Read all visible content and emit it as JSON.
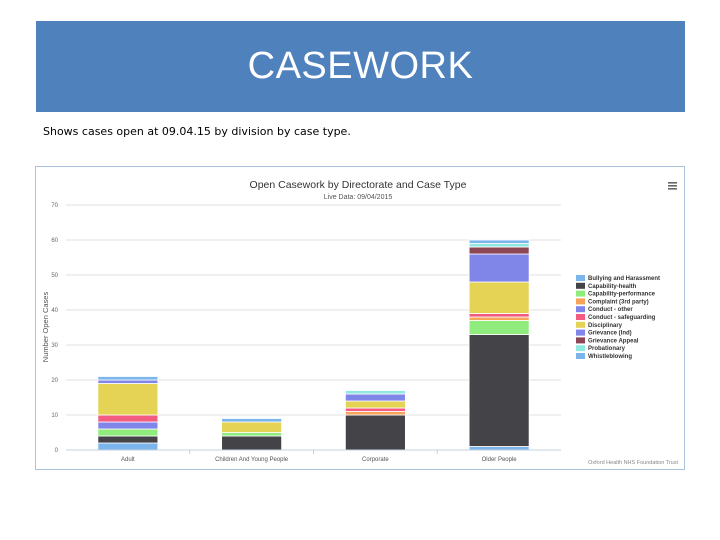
{
  "header": {
    "title": "CASEWORK"
  },
  "subtitle": "Shows cases open at 09.04.15 by division by case type.",
  "chart_data": {
    "type": "bar",
    "stacked": true,
    "title": "Open Casework by Directorate and Case Type",
    "subtitle": "Live Data: 09/04/2015",
    "xlabel": "",
    "ylabel": "Number Open Cases",
    "ylim": [
      0,
      70
    ],
    "yticks": [
      0,
      10,
      20,
      30,
      40,
      50,
      60,
      70
    ],
    "grid": true,
    "legend_position": "right",
    "menu_icon": "hamburger-menu-icon",
    "credit": "Oxford Health NHS Foundation Trust",
    "categories": [
      "Adult",
      "Children And Young People",
      "Corporate",
      "Older People"
    ],
    "series": [
      {
        "name": "Bullying and Harassment",
        "color": "#7cb5ec",
        "values": [
          2,
          0,
          0,
          1
        ]
      },
      {
        "name": "Capability-health",
        "color": "#434348",
        "values": [
          2,
          4,
          10,
          32
        ]
      },
      {
        "name": "Capability-performance",
        "color": "#90ed7d",
        "values": [
          2,
          1,
          0,
          4
        ]
      },
      {
        "name": "Complaint (3rd party)",
        "color": "#f7a35c",
        "values": [
          0,
          0,
          1,
          1
        ]
      },
      {
        "name": "Conduct - other",
        "color": "#8085e9",
        "values": [
          2,
          0,
          0,
          0
        ]
      },
      {
        "name": "Conduct - safeguarding",
        "color": "#f15c80",
        "values": [
          2,
          0,
          1,
          1
        ]
      },
      {
        "name": "Disciplinary",
        "color": "#e4d354",
        "values": [
          9,
          3,
          2,
          9
        ]
      },
      {
        "name": "Grievance (Ind)",
        "color": "#8085e8",
        "values": [
          1,
          0,
          2,
          8
        ]
      },
      {
        "name": "Grievance Appeal",
        "color": "#8d4653",
        "values": [
          0,
          0,
          0,
          2
        ]
      },
      {
        "name": "Probationary",
        "color": "#91e8e1",
        "values": [
          0,
          0,
          1,
          1
        ]
      },
      {
        "name": "Whistleblowing",
        "color": "#7cb5ec",
        "values": [
          1,
          1,
          0,
          1
        ]
      }
    ]
  }
}
